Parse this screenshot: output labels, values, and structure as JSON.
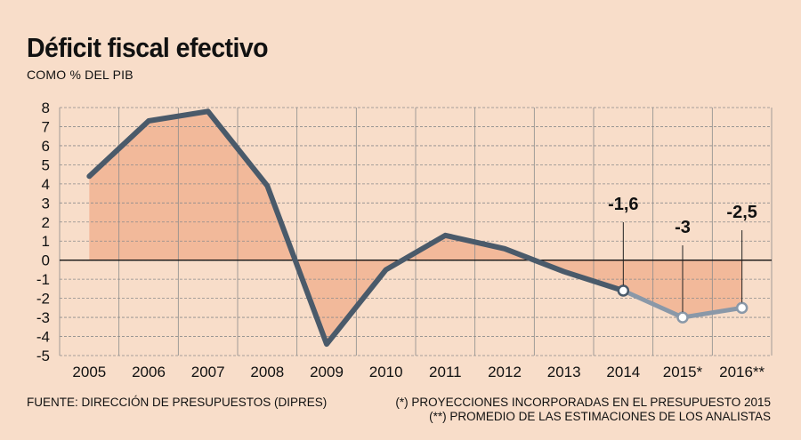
{
  "chart_data": {
    "type": "line",
    "title": "Déficit fiscal efectivo",
    "subtitle": "COMO % DEL PIB",
    "categories": [
      "2005",
      "2006",
      "2007",
      "2008",
      "2009",
      "2010",
      "2011",
      "2012",
      "2013",
      "2014",
      "2015*",
      "2016**"
    ],
    "series": [
      {
        "values": [
          4.4,
          7.3,
          7.8,
          3.9,
          -4.4,
          -0.5,
          1.3,
          0.6,
          -0.6,
          -1.6,
          -3.0,
          -2.5
        ],
        "projected_from_index": 9
      }
    ],
    "data_labels": [
      {
        "index": 9,
        "text": "-1,6"
      },
      {
        "index": 10,
        "text": "-3"
      },
      {
        "index": 11,
        "text": "-2,5"
      }
    ],
    "ylim": [
      -5,
      8
    ],
    "yticks": [
      8,
      7,
      6,
      5,
      4,
      3,
      2,
      1,
      0,
      -1,
      -2,
      -3,
      -4,
      -5
    ],
    "grid": true,
    "colors": {
      "line": "#4a5a6a",
      "projected_line": "#8a98a8",
      "fill": "#f2b99a",
      "grid": "#8c8c8c",
      "background": "#f8ddc9"
    }
  },
  "footer": {
    "source": "FUENTE: DIRECCIÓN DE PRESUPUESTOS (DIPRES)",
    "note1": "(*) PROYECCIONES INCORPORADAS EN EL PRESUPUESTO 2015",
    "note2": "(**) PROMEDIO DE LAS ESTIMACIONES DE LOS ANALISTAS"
  }
}
